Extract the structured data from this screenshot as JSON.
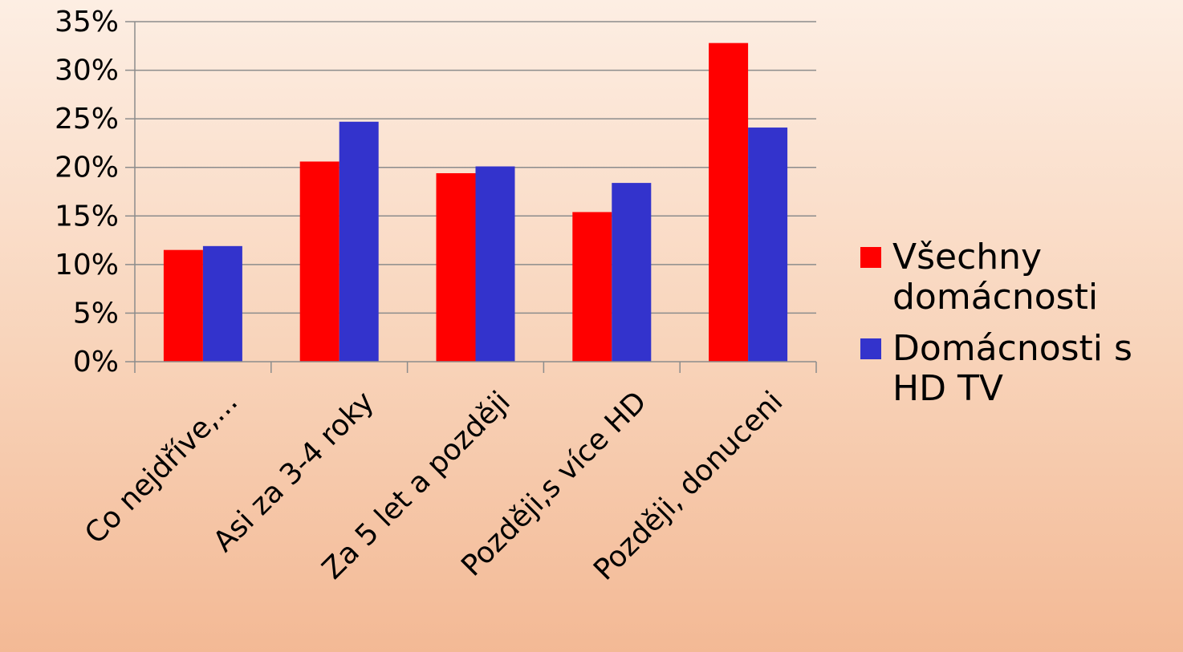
{
  "colors": {
    "series_1": "#ff0000",
    "series_2": "#3333cc",
    "grid": "#8c8c8c",
    "axis": "#8c8c8c"
  },
  "chart_data": {
    "type": "bar",
    "categories": [
      "Co nejdříve,...",
      "Asi za 3-4 roky",
      "Za 5 let a později",
      "Později,s více HD",
      "Později, donuceni"
    ],
    "series": [
      {
        "name": "Všechny domácnosti",
        "values": [
          11.5,
          20.6,
          19.4,
          15.4,
          32.8
        ]
      },
      {
        "name": "Domácnosti s HD TV",
        "values": [
          11.9,
          24.7,
          20.1,
          18.4,
          24.1
        ]
      }
    ],
    "ylim": [
      0,
      35
    ],
    "yticks": [
      "0%",
      "5%",
      "10%",
      "15%",
      "20%",
      "25%",
      "30%",
      "35%"
    ],
    "ytick_values": [
      0,
      5,
      10,
      15,
      20,
      25,
      30,
      35
    ],
    "grid": true,
    "legend_position": "right",
    "title": "",
    "xlabel": "",
    "ylabel": ""
  }
}
